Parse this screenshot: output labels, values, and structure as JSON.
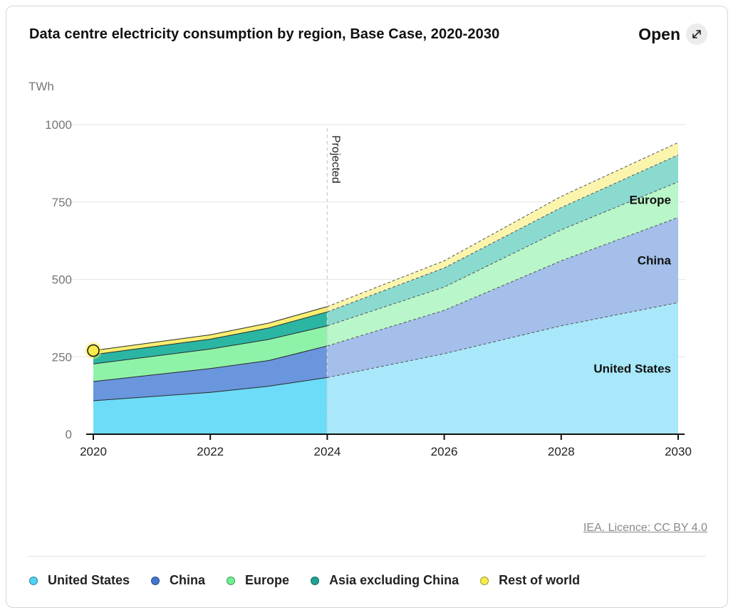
{
  "header": {
    "title": "Data centre electricity consumption by region, Base Case, 2020-2030",
    "open_label": "Open"
  },
  "credit": "IEA. Licence: CC BY 4.0",
  "legend": [
    {
      "label": "United States",
      "color": "#4dd3f5"
    },
    {
      "label": "China",
      "color": "#3f76cf"
    },
    {
      "label": "Europe",
      "color": "#6ef08f"
    },
    {
      "label": "Asia excluding China",
      "color": "#1fa393"
    },
    {
      "label": "Rest of world",
      "color": "#f8ec4a"
    }
  ],
  "chart_data": {
    "type": "area",
    "stacked": true,
    "title": "Data centre electricity consumption by region, Base Case, 2020-2030",
    "ylabel": "TWh",
    "xlabel": "",
    "ylim": [
      0,
      1000
    ],
    "yticks": [
      0,
      250,
      500,
      750,
      1000
    ],
    "xlim": [
      2020,
      2030
    ],
    "xticks": [
      2020,
      2022,
      2024,
      2026,
      2028,
      2030
    ],
    "grid": true,
    "projected_from": 2024,
    "projected_label": "Projected",
    "x": [
      2020,
      2022,
      2023,
      2024,
      2026,
      2028,
      2030
    ],
    "series": [
      {
        "name": "United States",
        "color": "#6cdcf8",
        "proj_color": "#a8e8fa",
        "label_on_chart": "United States",
        "values": [
          108,
          135,
          155,
          183,
          260,
          350,
          425
        ]
      },
      {
        "name": "China",
        "color": "#6996dd",
        "proj_color": "#a3bfea",
        "label_on_chart": "China",
        "values": [
          62,
          77,
          83,
          102,
          140,
          210,
          275
        ]
      },
      {
        "name": "Europe",
        "color": "#8ef3a9",
        "proj_color": "#b9f6c9",
        "label_on_chart": "Europe",
        "values": [
          57,
          63,
          68,
          65,
          75,
          100,
          115
        ]
      },
      {
        "name": "Asia excluding China",
        "color": "#2bb6a4",
        "proj_color": "#8adad0",
        "label_on_chart": "",
        "values": [
          30,
          32,
          37,
          45,
          62,
          72,
          87
        ]
      },
      {
        "name": "Rest of world",
        "color": "#f9ee70",
        "proj_color": "#fbf4ad",
        "label_on_chart": "",
        "values": [
          13,
          14,
          16,
          17,
          23,
          36,
          40
        ]
      }
    ],
    "highlight_point": {
      "series": "Rest of world",
      "x": 2020
    }
  }
}
